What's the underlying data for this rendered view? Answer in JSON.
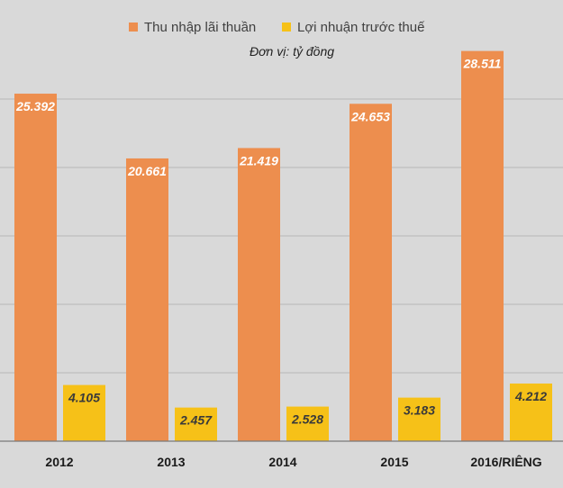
{
  "chart_data": {
    "type": "bar",
    "categories": [
      "2012",
      "2013",
      "2014",
      "2015",
      "2016/RIÊNG"
    ],
    "series": [
      {
        "name": "Thu nhập lãi thuần",
        "values": [
          25.392,
          20.661,
          21.419,
          24.653,
          28.511
        ],
        "labels": [
          "25.392",
          "20.661",
          "21.419",
          "24.653",
          "28.511"
        ],
        "color": "#ED8E4E"
      },
      {
        "name": "Lợi nhuận trước thuế",
        "values": [
          4.105,
          2.457,
          2.528,
          3.183,
          4.212
        ],
        "labels": [
          "4.105",
          "2.457",
          "2.528",
          "3.183",
          "4.212"
        ],
        "color": "#F6C118"
      }
    ],
    "unit": "Đơn vị: tỷ đồng",
    "title": "",
    "xlabel": "",
    "ylabel": "",
    "ylim": [
      0,
      30
    ],
    "grid": true,
    "legend": "top-center"
  }
}
